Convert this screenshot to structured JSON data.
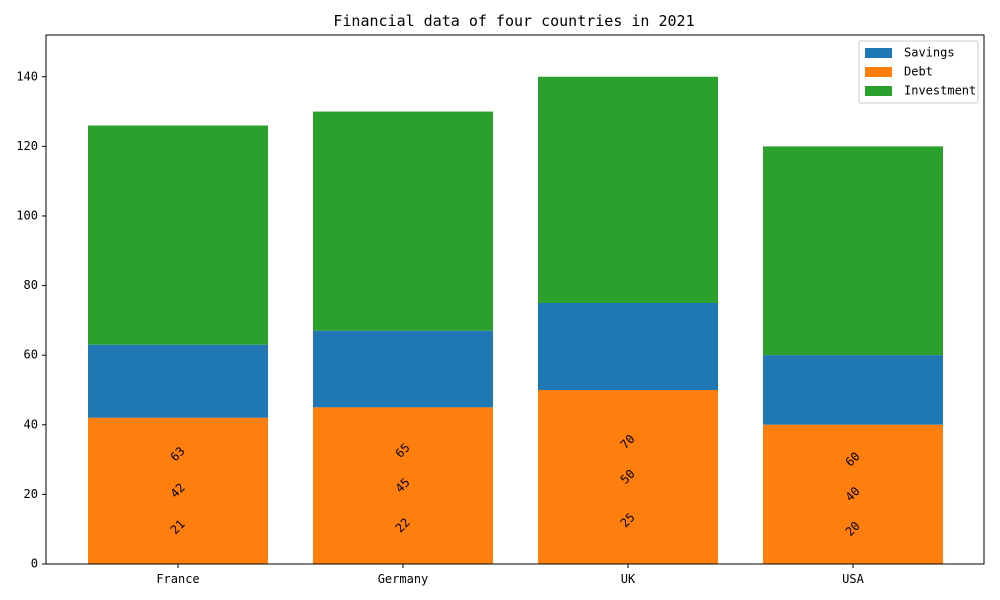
{
  "chart_data": {
    "type": "bar",
    "stacked": true,
    "title": "Financial data of four countries in 2021",
    "xlabel": "",
    "ylabel": "",
    "categories": [
      "France",
      "Germany",
      "UK",
      "USA"
    ],
    "ylim": [
      0,
      152
    ],
    "yticks": [
      0,
      20,
      40,
      60,
      80,
      100,
      120,
      140
    ],
    "series": [
      {
        "name": "Savings",
        "color": "#1f77b4",
        "values": [
          21,
          22,
          25,
          20
        ]
      },
      {
        "name": "Debt",
        "color": "#ff7f0e",
        "values": [
          42,
          45,
          50,
          40
        ]
      },
      {
        "name": "Investment",
        "color": "#2ca02c",
        "values": [
          63,
          65,
          70,
          60
        ]
      }
    ],
    "data_labels": [
      [
        "21",
        "42",
        "63"
      ],
      [
        "22",
        "45",
        "65"
      ],
      [
        "25",
        "50",
        "70"
      ],
      [
        "20",
        "40",
        "60"
      ]
    ],
    "legend_position": "top-right",
    "grid": false
  }
}
